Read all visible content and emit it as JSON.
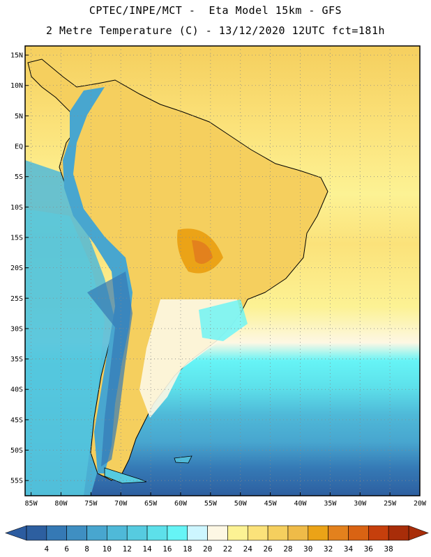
{
  "header": {
    "line1": "CPTEC/INPE/MCT -  Eta Model 15km - GFS",
    "line2": "2 Metre Temperature (C) - 13/12/2020 12UTC fct=181h"
  },
  "map": {
    "lat_labels": [
      "15N",
      "10N",
      "5N",
      "EQ",
      "5S",
      "10S",
      "15S",
      "20S",
      "25S",
      "30S",
      "35S",
      "40S",
      "45S",
      "50S",
      "55S"
    ],
    "lon_labels": [
      "85W",
      "80W",
      "75W",
      "70W",
      "65W",
      "60W",
      "55W",
      "50W",
      "45W",
      "40W",
      "35W",
      "30W",
      "25W",
      "20W"
    ],
    "lat_range": [
      -57.5,
      16.5
    ],
    "lon_range": [
      -86,
      -20
    ],
    "gridlines": "dotted"
  },
  "colorbar": {
    "labels": [
      "4",
      "6",
      "8",
      "10",
      "12",
      "14",
      "16",
      "18",
      "20",
      "22",
      "24",
      "26",
      "28",
      "30",
      "32",
      "34",
      "36",
      "38"
    ],
    "colors": [
      "#2d5fa0",
      "#3579b5",
      "#3f8fc2",
      "#48a6cf",
      "#4fb9d8",
      "#56cbe0",
      "#5de0ea",
      "#66f4f6",
      "#cdf6ff",
      "#fdf7e4",
      "#fcf294",
      "#fbe27a",
      "#f5cf5e",
      "#efbb48",
      "#eba317",
      "#e3811d",
      "#d96313",
      "#c63f0c",
      "#a82d09"
    ],
    "low_arrow_color": "#2c5ca0",
    "high_arrow_color": "#a82d09"
  }
}
